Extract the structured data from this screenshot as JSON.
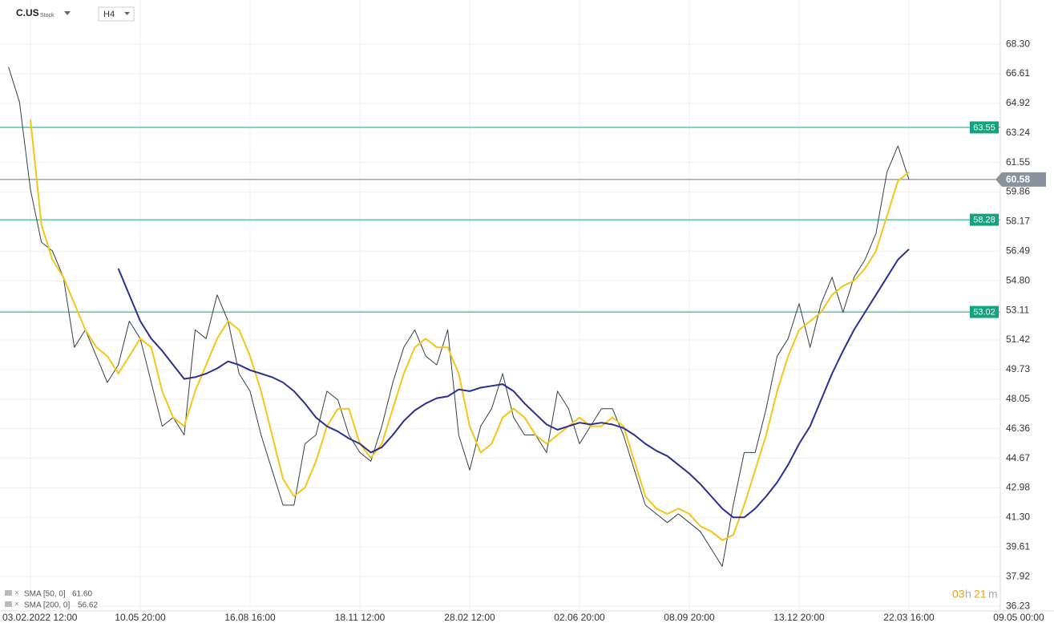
{
  "chart_data": {
    "type": "line",
    "symbol": "C.US",
    "instrument_type": "Stock",
    "interval": "H4",
    "categories": [
      null,
      null,
      "03.02.2022 12:00",
      null,
      null,
      null,
      null,
      null,
      null,
      null,
      null,
      null,
      "10.05 20:00",
      null,
      null,
      null,
      null,
      null,
      null,
      null,
      null,
      null,
      "16.08 16:00",
      null,
      null,
      null,
      null,
      null,
      null,
      null,
      null,
      null,
      "18.11 12:00",
      null,
      null,
      null,
      null,
      null,
      null,
      null,
      null,
      null,
      "28.02 12:00",
      null,
      null,
      null,
      null,
      null,
      null,
      null,
      null,
      null,
      "02.06 20:00",
      null,
      null,
      null,
      null,
      null,
      null,
      null,
      null,
      null,
      "08.09 20:00",
      null,
      null,
      null,
      null,
      null,
      null,
      null,
      null,
      null,
      "13.12 20:00",
      null,
      null,
      null,
      null,
      null,
      null,
      null,
      null,
      null,
      "22.03 16:00",
      null,
      null,
      null,
      null,
      null,
      null,
      null,
      null,
      null,
      "09.05 00:00"
    ],
    "series": [
      {
        "color": "#34404a",
        "values": [
          67,
          65,
          60,
          57,
          56.5,
          55,
          51,
          52,
          50.5,
          49,
          50,
          52.5,
          51.5,
          49,
          46.5,
          47,
          46,
          52,
          51.5,
          54,
          52.5,
          49.5,
          48.5,
          46,
          44,
          42,
          42,
          45.5,
          46,
          48.5,
          48,
          46,
          45,
          44.5,
          46.5,
          49,
          51,
          52,
          50.5,
          50,
          52,
          46,
          44,
          46.5,
          47.5,
          49.5,
          47,
          46,
          46,
          45,
          48.5,
          47.5,
          45.5,
          46.5,
          47.5,
          47.5,
          46,
          44,
          42,
          41.5,
          41,
          41.5,
          41,
          40.5,
          39.5,
          38.5,
          42,
          45,
          45,
          47.5,
          50.5,
          51.5,
          53.5,
          51,
          53.5,
          55,
          53,
          55,
          56,
          57.5,
          61,
          62.5,
          60.58,
          null,
          null,
          null,
          null,
          null,
          null,
          null,
          null,
          null,
          null
        ]
      },
      {
        "name": "SMA [50, 0]",
        "color": "#f5c518",
        "legend_value": {
          "value": 61.6,
          "label": "61.60"
        },
        "values": [
          null,
          null,
          64,
          58,
          56,
          55,
          53.5,
          52,
          51,
          50.5,
          49.5,
          50.5,
          51.5,
          51,
          48.5,
          47,
          46.5,
          48.5,
          50,
          51.5,
          52.5,
          52,
          50.5,
          48.5,
          46,
          43.5,
          42.5,
          43,
          44.5,
          46.5,
          47.5,
          47.5,
          45.5,
          44.7,
          45.5,
          47.5,
          49.5,
          51,
          51.5,
          51,
          51,
          49.5,
          46.5,
          45,
          45.5,
          47,
          47.5,
          47,
          46,
          45.5,
          46,
          46.5,
          47,
          46.5,
          46.5,
          47,
          46.5,
          44.5,
          42.5,
          41.8,
          41.5,
          41.8,
          41.5,
          40.8,
          40.5,
          40,
          40.3,
          42,
          44,
          46,
          48.5,
          50.5,
          52,
          52.5,
          53,
          54,
          54.5,
          54.8,
          55.5,
          56.5,
          58.5,
          60.5,
          61,
          null,
          null,
          null,
          null,
          null,
          null,
          null,
          null,
          null,
          null
        ]
      },
      {
        "name": "SMA [200, 0]",
        "color": "#2b2f8f",
        "legend_value": {
          "value": 56.62,
          "label": "56.62"
        },
        "values": [
          null,
          null,
          null,
          null,
          null,
          null,
          null,
          null,
          null,
          null,
          55.5,
          54,
          52.5,
          51.5,
          50.8,
          50,
          49.2,
          49.3,
          49.5,
          49.8,
          50.2,
          50,
          49.7,
          49.5,
          49.3,
          49,
          48.5,
          47.8,
          47,
          46.5,
          46.2,
          45.8,
          45.5,
          45,
          45.3,
          46,
          46.8,
          47.4,
          47.8,
          48.1,
          48.2,
          48.6,
          48.5,
          48.7,
          48.8,
          48.9,
          48.5,
          47.8,
          47.2,
          46.6,
          46.3,
          46.5,
          46.7,
          46.6,
          46.7,
          46.6,
          46.4,
          46,
          45.5,
          45.1,
          44.8,
          44.3,
          43.8,
          43.2,
          42.5,
          41.8,
          41.3,
          41.3,
          41.8,
          42.5,
          43.3,
          44.3,
          45.5,
          46.5,
          48,
          49.5,
          50.8,
          52,
          53,
          54,
          55,
          56,
          56.6,
          null,
          null,
          null,
          null,
          null,
          null,
          null,
          null,
          null,
          null
        ]
      }
    ],
    "levels": [
      63.55,
      58.28,
      53.02
    ],
    "level_color": "#13a37e",
    "last_price": 60.58,
    "ylim": [
      35.96,
      70.82
    ],
    "yticks": [
      {
        "value": 68.3,
        "label": "68.30"
      },
      66.61,
      64.92,
      63.24,
      61.55,
      59.86,
      58.17,
      56.49,
      {
        "value": 54.8,
        "label": "54.80"
      },
      53.11,
      51.42,
      49.73,
      48.05,
      46.36,
      44.67,
      42.98,
      {
        "value": 41.3,
        "label": "41.30"
      },
      39.61,
      37.92,
      36.23
    ],
    "grid": true,
    "countdown": {
      "hours": "03",
      "h": "h",
      "minutes": "21",
      "m": "m"
    }
  }
}
